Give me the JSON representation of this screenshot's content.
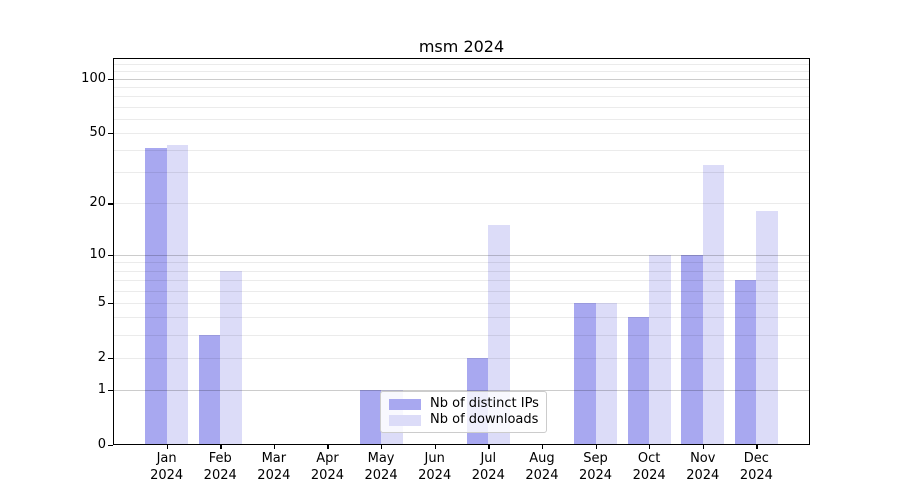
{
  "chart_data": {
    "type": "bar",
    "title": "msm 2024",
    "categories": [
      "Jan",
      "Feb",
      "Mar",
      "Apr",
      "May",
      "Jun",
      "Jul",
      "Aug",
      "Sep",
      "Oct",
      "Nov",
      "Dec"
    ],
    "x_year_label": "2024",
    "series": [
      {
        "name": "Nb of distinct IPs",
        "color": "#a8a8f0",
        "values": [
          41,
          3,
          0,
          0,
          1,
          0,
          2,
          0,
          5,
          4,
          10,
          7
        ]
      },
      {
        "name": "Nb of downloads",
        "color": "#dcdcf8",
        "values": [
          43,
          8,
          0,
          0,
          1,
          0,
          15,
          0,
          5,
          10,
          33,
          18
        ]
      }
    ],
    "y_scale": "log1p",
    "ylim": [
      0,
      130
    ],
    "y_ticks": [
      100,
      50,
      20,
      10,
      5,
      2,
      1,
      0
    ],
    "y_major_gridlines": [
      1,
      10,
      100
    ],
    "y_minor_gridlines": [
      2,
      3,
      4,
      5,
      6,
      7,
      8,
      9,
      20,
      30,
      40,
      50,
      60,
      70,
      80,
      90,
      110,
      120
    ],
    "grid": true,
    "legend_position": "lower center",
    "background_color": "#ffffff",
    "spine_color": "#000000"
  }
}
